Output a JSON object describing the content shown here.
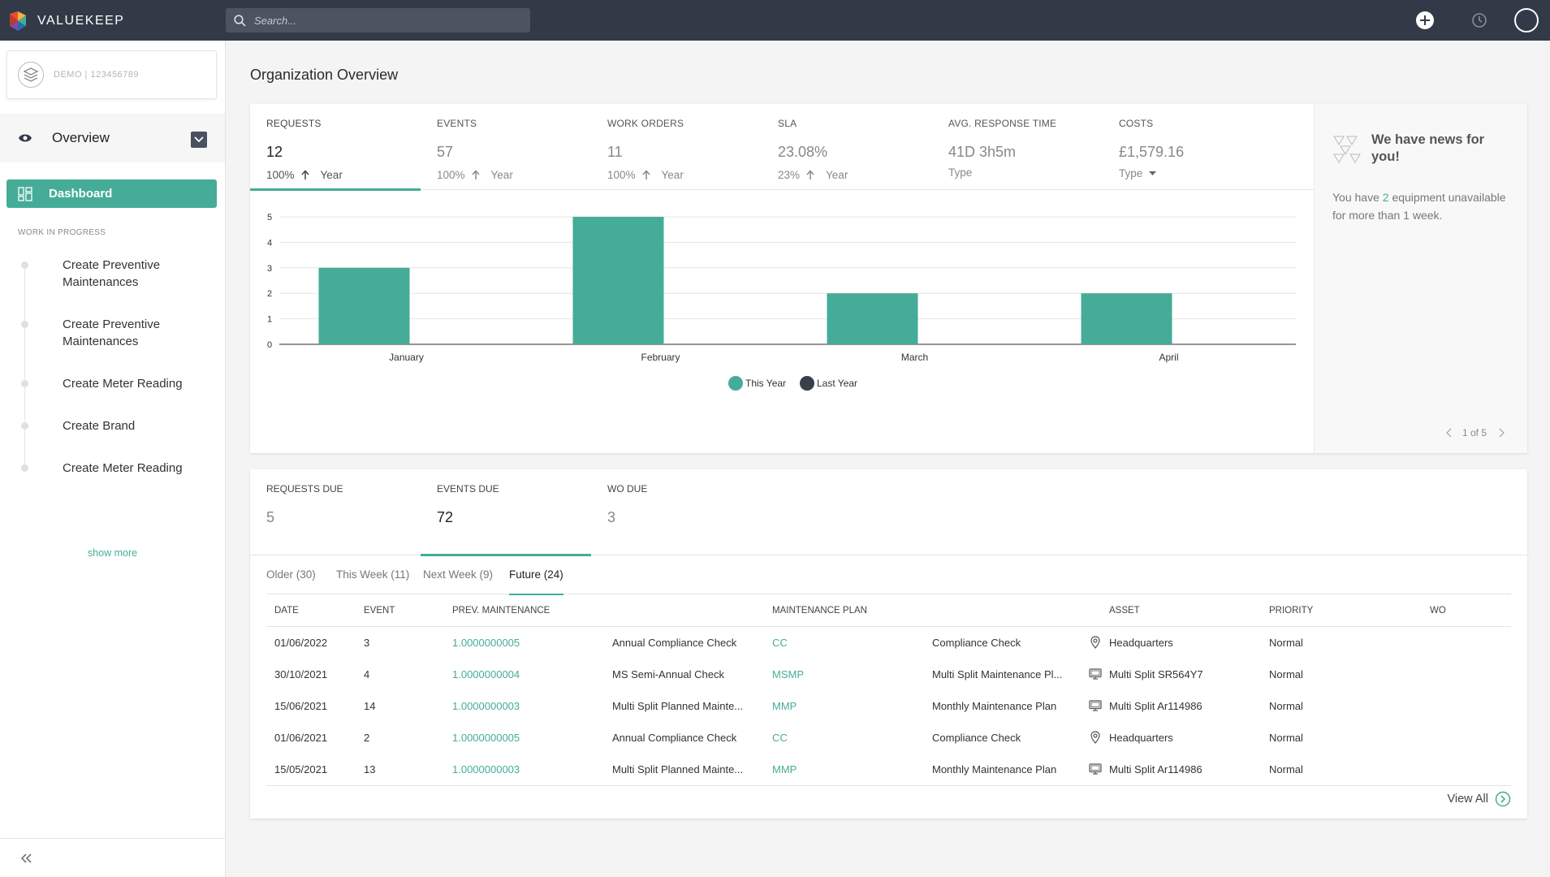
{
  "header": {
    "app_name": "VALUEKEEP",
    "search_placeholder": "Search..."
  },
  "sidebar": {
    "org_label": "DEMO | 123456789",
    "overview_label": "Overview",
    "dashboard_label": "Dashboard",
    "wip_heading": "WORK IN PROGRESS",
    "wip_items": [
      "Create Preventive Maintenances",
      "Create Preventive Maintenances",
      "Create Meter Reading",
      "Create Brand",
      "Create Meter Reading"
    ],
    "show_more": "show more"
  },
  "main": {
    "title": "Organization Overview",
    "kpis": [
      {
        "label": "REQUESTS",
        "value": "12",
        "pct": "100%",
        "period": "Year"
      },
      {
        "label": "EVENTS",
        "value": "57",
        "pct": "100%",
        "period": "Year"
      },
      {
        "label": "WORK ORDERS",
        "value": "11",
        "pct": "100%",
        "period": "Year"
      },
      {
        "label": "SLA",
        "value": "23.08%",
        "pct": "23%",
        "period": "Year"
      },
      {
        "label": "AVG. RESPONSE TIME",
        "value": "41D 3h5m",
        "type": "Type"
      },
      {
        "label": "COSTS",
        "value": "£1,579.16",
        "type": "Type"
      }
    ],
    "news": {
      "title": "We have news for you!",
      "body_before": "You have ",
      "body_count": "2",
      "body_after": " equipment unavailable for more than 1 week.",
      "pager": "1 of 5"
    },
    "due": [
      {
        "label": "REQUESTS DUE",
        "value": "5"
      },
      {
        "label": "EVENTS DUE",
        "value": "72"
      },
      {
        "label": "WO DUE",
        "value": "3"
      }
    ],
    "subtabs": [
      "Older (30)",
      "This Week (11)",
      "Next Week (9)",
      "Future (24)"
    ],
    "table": {
      "columns": [
        "DATE",
        "EVENT",
        "PREV. MAINTENANCE",
        "MAINTENANCE PLAN",
        "ASSET",
        "PRIORITY",
        "WO"
      ],
      "rows": [
        {
          "date": "01/06/2022",
          "event": "3",
          "pm_code": "1.0000000005",
          "pm_name": "Annual Compliance Check",
          "plan_code": "CC",
          "plan_name": "Compliance Check",
          "asset_icon": "location-pin-icon",
          "asset": "Headquarters",
          "priority": "Normal",
          "wo": ""
        },
        {
          "date": "30/10/2021",
          "event": "4",
          "pm_code": "1.0000000004",
          "pm_name": "MS Semi-Annual Check",
          "plan_code": "MSMP",
          "plan_name": "Multi Split Maintenance Pl...",
          "asset_icon": "monitor-icon",
          "asset": "Multi Split SR564Y7",
          "priority": "Normal",
          "wo": ""
        },
        {
          "date": "15/06/2021",
          "event": "14",
          "pm_code": "1.0000000003",
          "pm_name": "Multi Split Planned Mainte...",
          "plan_code": "MMP",
          "plan_name": "Monthly Maintenance Plan",
          "asset_icon": "monitor-icon",
          "asset": "Multi Split Ar114986",
          "priority": "Normal",
          "wo": ""
        },
        {
          "date": "01/06/2021",
          "event": "2",
          "pm_code": "1.0000000005",
          "pm_name": "Annual Compliance Check",
          "plan_code": "CC",
          "plan_name": "Compliance Check",
          "asset_icon": "location-pin-icon",
          "asset": "Headquarters",
          "priority": "Normal",
          "wo": ""
        },
        {
          "date": "15/05/2021",
          "event": "13",
          "pm_code": "1.0000000003",
          "pm_name": "Multi Split Planned Mainte...",
          "plan_code": "MMP",
          "plan_name": "Monthly Maintenance Plan",
          "asset_icon": "monitor-icon",
          "asset": "Multi Split Ar114986",
          "priority": "Normal",
          "wo": ""
        }
      ]
    },
    "view_all": "View All"
  },
  "colors": {
    "accent": "#45ac98",
    "topbar": "#333a47",
    "last_year": "#3a3f4b"
  },
  "chart_data": {
    "type": "bar",
    "categories": [
      "January",
      "February",
      "March",
      "April"
    ],
    "series": [
      {
        "name": "This Year",
        "values": [
          3,
          5,
          2,
          2
        ],
        "color": "#45ac98"
      },
      {
        "name": "Last Year",
        "values": [
          0,
          0,
          0,
          0
        ],
        "color": "#3a3f4b"
      }
    ],
    "ylim": [
      0,
      5
    ],
    "yticks": [
      0,
      1,
      2,
      3,
      4,
      5
    ],
    "grid": true,
    "legend": "bottom"
  }
}
